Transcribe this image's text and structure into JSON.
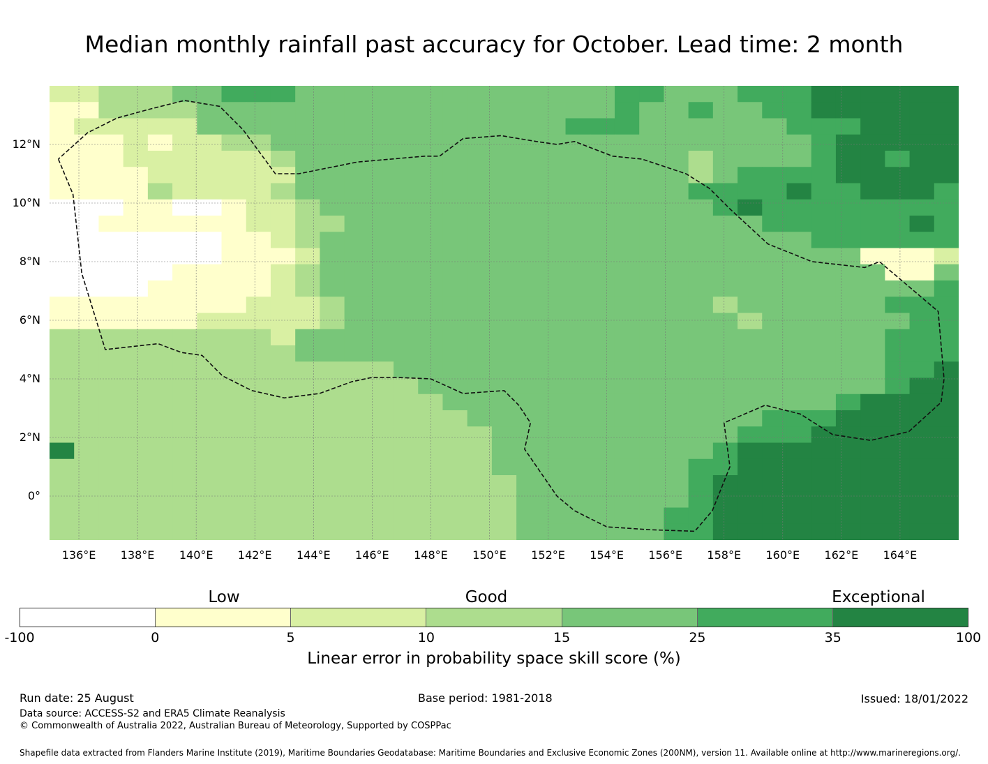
{
  "title": "Median monthly rainfall past accuracy for October. Lead time: 2 month",
  "map": {
    "lon_range": [
      135,
      166
    ],
    "lat_range": [
      -1.5,
      14
    ],
    "lat_ticks": [
      {
        "value": 12,
        "label": "12°N"
      },
      {
        "value": 10,
        "label": "10°N"
      },
      {
        "value": 8,
        "label": "8°N"
      },
      {
        "value": 6,
        "label": "6°N"
      },
      {
        "value": 4,
        "label": "4°N"
      },
      {
        "value": 2,
        "label": "2°N"
      },
      {
        "value": 0,
        "label": "0°"
      }
    ],
    "lon_ticks": [
      {
        "value": 136,
        "label": "136°E"
      },
      {
        "value": 138,
        "label": "138°E"
      },
      {
        "value": 140,
        "label": "140°E"
      },
      {
        "value": 142,
        "label": "142°E"
      },
      {
        "value": 144,
        "label": "144°E"
      },
      {
        "value": 146,
        "label": "146°E"
      },
      {
        "value": 148,
        "label": "148°E"
      },
      {
        "value": 150,
        "label": "150°E"
      },
      {
        "value": 152,
        "label": "152°E"
      },
      {
        "value": 154,
        "label": "154°E"
      },
      {
        "value": 156,
        "label": "156°E"
      },
      {
        "value": 158,
        "label": "158°E"
      },
      {
        "value": 160,
        "label": "160°E"
      },
      {
        "value": 162,
        "label": "162°E"
      },
      {
        "value": 164,
        "label": "164°E"
      }
    ],
    "eez_boundary": [
      [
        135.3,
        11.5
      ],
      [
        135.8,
        10.3
      ],
      [
        136.1,
        7.6
      ],
      [
        136.9,
        5.0
      ],
      [
        138.7,
        5.2
      ],
      [
        139.5,
        4.9
      ],
      [
        140.2,
        4.8
      ],
      [
        140.9,
        4.1
      ],
      [
        141.9,
        3.6
      ],
      [
        143.0,
        3.35
      ],
      [
        144.2,
        3.5
      ],
      [
        145.3,
        3.9
      ],
      [
        146.0,
        4.05
      ],
      [
        146.8,
        4.05
      ],
      [
        148.0,
        4.0
      ],
      [
        149.1,
        3.5
      ],
      [
        150.5,
        3.6
      ],
      [
        151.0,
        3.1
      ],
      [
        151.4,
        2.5
      ],
      [
        151.2,
        1.6
      ],
      [
        152.3,
        0.0
      ],
      [
        152.9,
        -0.5
      ],
      [
        154.0,
        -1.05
      ],
      [
        155.5,
        -1.15
      ],
      [
        157.0,
        -1.2
      ],
      [
        157.6,
        -0.5
      ],
      [
        158.2,
        1.0
      ],
      [
        158.0,
        2.5
      ],
      [
        159.4,
        3.1
      ],
      [
        160.6,
        2.8
      ],
      [
        161.7,
        2.1
      ],
      [
        163.0,
        1.9
      ],
      [
        164.3,
        2.2
      ],
      [
        165.4,
        3.2
      ],
      [
        165.5,
        4.0
      ],
      [
        165.3,
        6.3
      ],
      [
        163.3,
        8.0
      ],
      [
        162.8,
        7.8
      ],
      [
        161.0,
        8.0
      ],
      [
        159.5,
        8.6
      ],
      [
        158.2,
        9.8
      ],
      [
        157.5,
        10.5
      ],
      [
        156.7,
        11.0
      ],
      [
        155.2,
        11.5
      ],
      [
        154.2,
        11.6
      ],
      [
        152.9,
        12.1
      ],
      [
        152.3,
        12.0
      ],
      [
        151.6,
        12.1
      ],
      [
        150.4,
        12.3
      ],
      [
        149.1,
        12.2
      ],
      [
        148.3,
        11.6
      ],
      [
        147.8,
        11.6
      ],
      [
        145.5,
        11.4
      ],
      [
        143.5,
        11.0
      ],
      [
        142.7,
        11.0
      ],
      [
        141.6,
        12.5
      ],
      [
        140.8,
        13.3
      ],
      [
        139.6,
        13.5
      ],
      [
        138.4,
        13.2
      ],
      [
        137.3,
        12.9
      ],
      [
        136.3,
        12.4
      ],
      [
        135.3,
        11.5
      ]
    ]
  },
  "legend": {
    "categories": [
      "Low",
      "Good",
      "Exceptional"
    ],
    "tick_labels": [
      "-100",
      "0",
      "5",
      "10",
      "15",
      "25",
      "35",
      "100"
    ],
    "colors": [
      "#ffffff",
      "#ffffcc",
      "#d9f0a3",
      "#addd8e",
      "#78c679",
      "#41ab5d",
      "#238443"
    ],
    "label": "Linear error in probability space skill score (%)"
  },
  "footer": {
    "run_date": "Run date: 25 August",
    "base_period": "Base period: 1981-2018",
    "issued": "Issued: 18/01/2022",
    "data_source": "Data source: ACCESS-S2 and ERA5 Climate Reanalysis",
    "copyright": "© Commonwealth of Australia 2022, Australian Bureau of Meteorology, Supported by COSPPac",
    "shapefile_note": "Shapefile data extracted from Flanders Marine Institute (2019), Maritime Boundaries Geodatabase: Maritime Boundaries and Exclusive Economic Zones (200NM), version 11. Available online at http://www.marineregions.org/."
  },
  "grid": {
    "cols": 37,
    "rows": 28,
    "data": [
      "2233344555444444444444455444555666666",
      "1133334444444444444444454454455666666",
      "1222224444444444444445554444445556666",
      "1112122334444444444444444444444566666",
      "1112222223444444444444444434444566566",
      "1111222222444444444444444434555566666",
      "1111322223444444444444444455556556665",
      "0001100122344444444444444445655555555",
      "0011111122334444444444444444455555565",
      "0000000112344444444444444444444555555",
      "0000000111244444444444444444444441112",
      "0000011112344444444444444444444444114",
      "0000111112344444444444444444444444445",
      "1111111122234444444444444443444444555",
      "1111112222234444444444444444344444455",
      "3333333332444444444444444444444444555",
      "3333333333444444444444444444444444555",
      "3333333333333344444444444444444444556",
      "3333333333333334444444444444444444566",
      "3333333333333333444444444444444456666",
      "3333333333333333344444444444455566666",
      "3333333333333333334444444444555666666",
      "6333333333333333334444444445666666666",
      "3333333333333333334444444455666666666",
      "3333333333333333333444444456666666666",
      "3333333333333333333444444456666666666",
      "3333333333333333333444444556666666666",
      "3333333333333333333444444556666666666"
    ]
  }
}
